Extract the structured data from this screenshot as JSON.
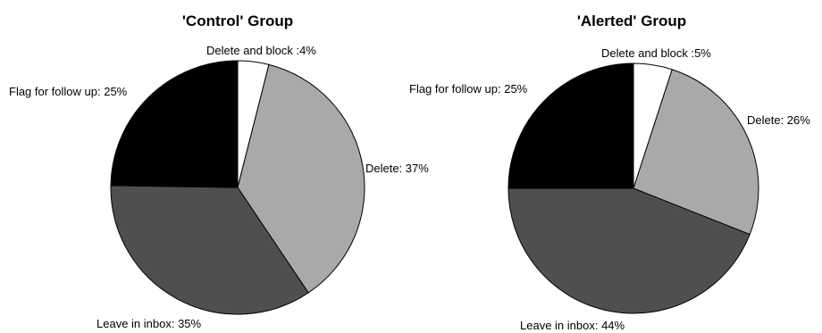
{
  "chart_data": [
    {
      "type": "pie",
      "title": "'Control' Group",
      "slices": [
        {
          "label": "Delete and block :4%",
          "value": 4,
          "color": "#ffffff"
        },
        {
          "label": "Delete: 37%",
          "value": 37,
          "color": "#a9a9a9"
        },
        {
          "label": "Leave in inbox: 35%",
          "value": 35,
          "color": "#4f4f4f"
        },
        {
          "label": "Flag for follow up: 25%",
          "value": 25,
          "color": "#000000"
        }
      ]
    },
    {
      "type": "pie",
      "title": "'Alerted' Group",
      "slices": [
        {
          "label": "Delete and block :5%",
          "value": 5,
          "color": "#ffffff"
        },
        {
          "label": "Delete: 26%",
          "value": 26,
          "color": "#a9a9a9"
        },
        {
          "label": "Leave in inbox: 44%",
          "value": 44,
          "color": "#4f4f4f"
        },
        {
          "label": "Flag for follow up: 25%",
          "value": 25,
          "color": "#000000"
        }
      ]
    }
  ]
}
